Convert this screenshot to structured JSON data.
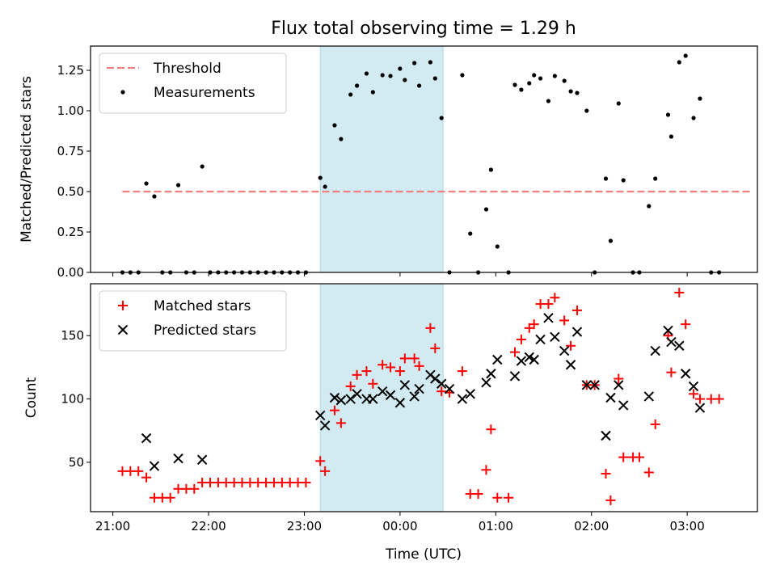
{
  "chart_data": {
    "title": "Flux total observing time = 1.29 h",
    "xlabel": "Time (UTC)",
    "x_ticks": [
      "21:00",
      "22:00",
      "23:00",
      "00:00",
      "01:00",
      "02:00",
      "03:00"
    ],
    "x_tick_minutes": [
      0,
      60,
      120,
      180,
      240,
      300,
      360
    ],
    "x_range_minutes": [
      -14,
      404
    ],
    "shaded_interval_minutes": [
      130,
      207
    ],
    "shade_color": "#add8e6",
    "panels": [
      {
        "type": "scatter",
        "ylabel": "Matched/Predicted stars",
        "ylim": [
          0,
          1.4
        ],
        "y_ticks": [
          "0.00",
          "0.25",
          "0.50",
          "0.75",
          "1.00",
          "1.25"
        ],
        "y_tick_values": [
          0,
          0.25,
          0.5,
          0.75,
          1.0,
          1.25
        ],
        "legend_position": "upper-left",
        "threshold": {
          "name": "Threshold",
          "value": 0.5,
          "x_start": 6,
          "x_end": 400,
          "color": "#f08080"
        },
        "series": [
          {
            "name": "Measurements",
            "marker": "dot",
            "color": "#000000",
            "points": [
              [
                6,
                0
              ],
              [
                11,
                0
              ],
              [
                16,
                0
              ],
              [
                21,
                0.55
              ],
              [
                26,
                0.47
              ],
              [
                31,
                0
              ],
              [
                36,
                0
              ],
              [
                41,
                0.54
              ],
              [
                46,
                0
              ],
              [
                51,
                0
              ],
              [
                56,
                0.655
              ],
              [
                61,
                0
              ],
              [
                66,
                0
              ],
              [
                71,
                0
              ],
              [
                76,
                0
              ],
              [
                81,
                0
              ],
              [
                86,
                0
              ],
              [
                91,
                0
              ],
              [
                96,
                0
              ],
              [
                101,
                0
              ],
              [
                106,
                0
              ],
              [
                111,
                0
              ],
              [
                116,
                0
              ],
              [
                121,
                0
              ],
              [
                130,
                0.585
              ],
              [
                133,
                0.53
              ],
              [
                139,
                0.91
              ],
              [
                143,
                0.825
              ],
              [
                149,
                1.1
              ],
              [
                153,
                1.155
              ],
              [
                159,
                1.23
              ],
              [
                163,
                1.115
              ],
              [
                169,
                1.22
              ],
              [
                174,
                1.215
              ],
              [
                180,
                1.26
              ],
              [
                183,
                1.19
              ],
              [
                189,
                1.295
              ],
              [
                192,
                1.155
              ],
              [
                199,
                1.3
              ],
              [
                202,
                1.2
              ],
              [
                206,
                0.955
              ],
              [
                211,
                0
              ],
              [
                219,
                1.22
              ],
              [
                224,
                0.24
              ],
              [
                229,
                0
              ],
              [
                234,
                0.39
              ],
              [
                237,
                0.635
              ],
              [
                241,
                0.16
              ],
              [
                248,
                0
              ],
              [
                252,
                1.16
              ],
              [
                256,
                1.13
              ],
              [
                261,
                1.17
              ],
              [
                264,
                1.22
              ],
              [
                268,
                1.2
              ],
              [
                273,
                1.06
              ],
              [
                277,
                1.215
              ],
              [
                283,
                1.185
              ],
              [
                287,
                1.12
              ],
              [
                291,
                1.11
              ],
              [
                297,
                1.0
              ],
              [
                302,
                0
              ],
              [
                309,
                0.58
              ],
              [
                312,
                0.195
              ],
              [
                317,
                1.045
              ],
              [
                320,
                0.57
              ],
              [
                326,
                0
              ],
              [
                330,
                0
              ],
              [
                336,
                0.41
              ],
              [
                340,
                0.58
              ],
              [
                348,
                0.975
              ],
              [
                350,
                0.84
              ],
              [
                355,
                1.3
              ],
              [
                359,
                1.34
              ],
              [
                364,
                0.955
              ],
              [
                368,
                1.075
              ],
              [
                375,
                0
              ],
              [
                380,
                0
              ]
            ]
          }
        ]
      },
      {
        "type": "scatter",
        "ylabel": "Count",
        "ylim": [
          11,
          191
        ],
        "y_ticks": [
          "50",
          "100",
          "150"
        ],
        "y_tick_values": [
          50,
          100,
          150
        ],
        "legend_position": "upper-left",
        "series": [
          {
            "name": "Matched stars",
            "marker": "plus",
            "color": "#ff0000",
            "points": [
              [
                6,
                43
              ],
              [
                11,
                43
              ],
              [
                16,
                43
              ],
              [
                21,
                38
              ],
              [
                26,
                22
              ],
              [
                31,
                22
              ],
              [
                36,
                22
              ],
              [
                41,
                29
              ],
              [
                46,
                29
              ],
              [
                51,
                29
              ],
              [
                56,
                34
              ],
              [
                61,
                34
              ],
              [
                66,
                34
              ],
              [
                71,
                34
              ],
              [
                76,
                34
              ],
              [
                81,
                34
              ],
              [
                86,
                34
              ],
              [
                91,
                34
              ],
              [
                96,
                34
              ],
              [
                101,
                34
              ],
              [
                106,
                34
              ],
              [
                111,
                34
              ],
              [
                116,
                34
              ],
              [
                121,
                34
              ],
              [
                130,
                51
              ],
              [
                133,
                43
              ],
              [
                139,
                91
              ],
              [
                143,
                81
              ],
              [
                149,
                110
              ],
              [
                153,
                119
              ],
              [
                159,
                122
              ],
              [
                163,
                112
              ],
              [
                169,
                127
              ],
              [
                174,
                125
              ],
              [
                180,
                122
              ],
              [
                183,
                132
              ],
              [
                189,
                132
              ],
              [
                192,
                126
              ],
              [
                199,
                156
              ],
              [
                202,
                140
              ],
              [
                206,
                106
              ],
              [
                211,
                105
              ],
              [
                219,
                122
              ],
              [
                224,
                25
              ],
              [
                229,
                25
              ],
              [
                234,
                44
              ],
              [
                237,
                76
              ],
              [
                241,
                22
              ],
              [
                248,
                22
              ],
              [
                252,
                137
              ],
              [
                256,
                147
              ],
              [
                261,
                156
              ],
              [
                264,
                159
              ],
              [
                268,
                175
              ],
              [
                273,
                175
              ],
              [
                277,
                180
              ],
              [
                283,
                162
              ],
              [
                287,
                142
              ],
              [
                291,
                170
              ],
              [
                297,
                111
              ],
              [
                302,
                111
              ],
              [
                309,
                41
              ],
              [
                312,
                20
              ],
              [
                317,
                116
              ],
              [
                320,
                54
              ],
              [
                326,
                54
              ],
              [
                330,
                54
              ],
              [
                336,
                42
              ],
              [
                340,
                80
              ],
              [
                348,
                150
              ],
              [
                350,
                121
              ],
              [
                355,
                184
              ],
              [
                359,
                159
              ],
              [
                364,
                104
              ],
              [
                368,
                100
              ],
              [
                375,
                100
              ],
              [
                380,
                100
              ]
            ]
          },
          {
            "name": "Predicted stars",
            "marker": "x",
            "color": "#000000",
            "points": [
              [
                21,
                69
              ],
              [
                26,
                47
              ],
              [
                41,
                53
              ],
              [
                56,
                52
              ],
              [
                130,
                87
              ],
              [
                133,
                79
              ],
              [
                139,
                101
              ],
              [
                143,
                99
              ],
              [
                149,
                100
              ],
              [
                153,
                104
              ],
              [
                159,
                100
              ],
              [
                163,
                100
              ],
              [
                169,
                106
              ],
              [
                174,
                103
              ],
              [
                180,
                97
              ],
              [
                183,
                111
              ],
              [
                189,
                102
              ],
              [
                192,
                108
              ],
              [
                199,
                119
              ],
              [
                202,
                116
              ],
              [
                206,
                112
              ],
              [
                211,
                108
              ],
              [
                219,
                100
              ],
              [
                224,
                104
              ],
              [
                234,
                113
              ],
              [
                237,
                120
              ],
              [
                241,
                131
              ],
              [
                252,
                118
              ],
              [
                256,
                130
              ],
              [
                261,
                133
              ],
              [
                264,
                131
              ],
              [
                268,
                147
              ],
              [
                273,
                164
              ],
              [
                277,
                149
              ],
              [
                283,
                138
              ],
              [
                287,
                127
              ],
              [
                291,
                153
              ],
              [
                297,
                111
              ],
              [
                302,
                111
              ],
              [
                309,
                71
              ],
              [
                312,
                101
              ],
              [
                317,
                111
              ],
              [
                320,
                95
              ],
              [
                336,
                102
              ],
              [
                340,
                138
              ],
              [
                348,
                154
              ],
              [
                350,
                145
              ],
              [
                355,
                142
              ],
              [
                359,
                120
              ],
              [
                364,
                110
              ],
              [
                368,
                93
              ]
            ]
          }
        ]
      }
    ]
  }
}
